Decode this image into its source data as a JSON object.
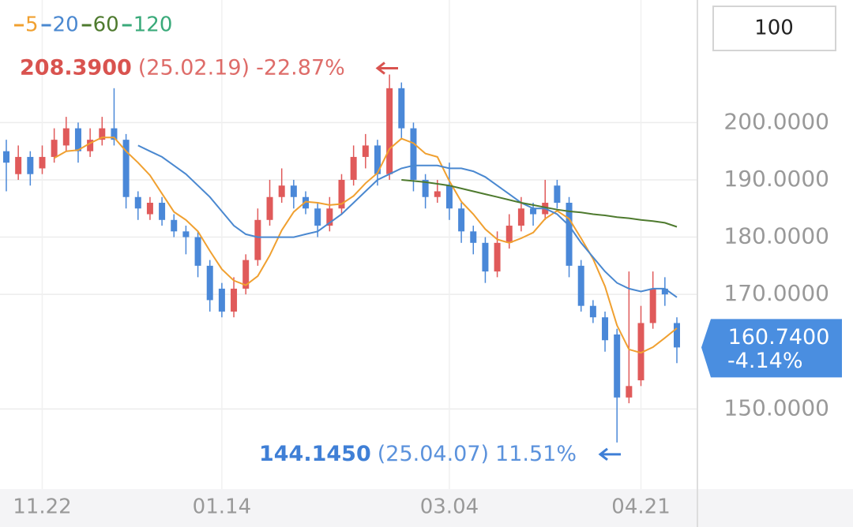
{
  "controls": {
    "count": "100"
  },
  "chart_data": {
    "type": "candlestick",
    "up_color": "#e05a5a",
    "down_color": "#4a88d8",
    "categories": [
      null,
      null,
      null,
      "11.22",
      null,
      null,
      null,
      null,
      null,
      null,
      null,
      null,
      null,
      null,
      null,
      null,
      null,
      null,
      "01.14",
      null,
      null,
      null,
      null,
      null,
      null,
      null,
      null,
      null,
      null,
      null,
      null,
      null,
      null,
      null,
      null,
      null,
      null,
      "03.04",
      null,
      null,
      null,
      null,
      null,
      null,
      null,
      null,
      null,
      null,
      null,
      null,
      null,
      null,
      null,
      "04.21",
      null,
      null,
      null
    ],
    "open": [
      195,
      191,
      194,
      192,
      194,
      196,
      199,
      195,
      197,
      199,
      197,
      187,
      184,
      186,
      183,
      181,
      180,
      175,
      171,
      167,
      171,
      176,
      183,
      187,
      189,
      187,
      185,
      182,
      185,
      190,
      194,
      196,
      191,
      206,
      199,
      190,
      187,
      189,
      185,
      181,
      179,
      174,
      179,
      182,
      185,
      184,
      189,
      186,
      175,
      168,
      166,
      163,
      152,
      155,
      165,
      171,
      165
    ],
    "high": [
      197,
      196,
      195,
      196,
      199,
      201,
      200,
      199,
      201,
      206,
      198,
      188,
      187,
      187,
      184,
      182,
      181,
      176,
      172,
      173,
      177,
      185,
      190,
      192,
      190,
      188,
      186,
      187,
      191,
      196,
      198,
      197,
      208.39,
      207,
      200,
      191,
      190,
      193,
      186,
      182,
      180,
      181,
      184,
      187,
      186,
      190,
      190,
      187,
      176,
      169,
      167,
      164,
      174,
      168,
      174,
      173,
      166
    ],
    "low": [
      188,
      190,
      189,
      191,
      193,
      195,
      193,
      194,
      196,
      196,
      185,
      183,
      183,
      182,
      180,
      177,
      173,
      167,
      166,
      166,
      170,
      175,
      182,
      186,
      185,
      184,
      180,
      181,
      184,
      189,
      192,
      189,
      190,
      197,
      188,
      185,
      186,
      183,
      179,
      177,
      172,
      173,
      178,
      181,
      182,
      183,
      185,
      173,
      167,
      165,
      160,
      144.145,
      151,
      154,
      164,
      168,
      158
    ],
    "close": [
      193,
      194,
      191,
      194,
      197,
      199,
      195,
      197,
      199,
      197,
      187,
      185,
      186,
      183,
      181,
      180,
      175,
      169,
      167,
      171,
      176,
      183,
      187,
      189,
      187,
      185,
      182,
      185,
      190,
      194,
      196,
      191,
      206,
      199,
      190,
      187,
      188,
      185,
      181,
      179,
      174,
      179,
      182,
      185,
      184,
      186,
      186,
      175,
      168,
      166,
      162,
      152,
      154,
      165,
      171,
      170,
      160.74
    ],
    "moving_averages": [
      {
        "name": "5",
        "color": "#f0a030",
        "values": [
          null,
          null,
          null,
          null,
          193.8,
          195,
          195.2,
          196.4,
          197.4,
          197.4,
          195,
          193,
          190.8,
          187.6,
          184.4,
          183,
          181,
          177.6,
          174.4,
          172.4,
          171.6,
          173.2,
          176.8,
          181.2,
          184.4,
          186.2,
          186,
          185.6,
          185.8,
          187.2,
          189.4,
          191.2,
          195.4,
          197.2,
          196.4,
          194.6,
          194,
          189.8,
          186.2,
          184,
          181.4,
          179.6,
          179,
          179.8,
          180.8,
          183.2,
          184.6,
          183.2,
          179.8,
          176.2,
          171.4,
          164.6,
          160.4,
          159.8,
          160.8,
          162.4,
          164.1
        ]
      },
      {
        "name": "20",
        "color": "#4a88d0",
        "values": [
          null,
          null,
          null,
          null,
          null,
          null,
          null,
          null,
          null,
          null,
          null,
          196,
          195,
          194,
          192.5,
          191,
          189,
          187,
          184.5,
          182,
          180.5,
          180,
          180,
          180,
          180,
          180.5,
          181,
          182.5,
          184,
          186,
          188,
          190,
          191,
          192,
          192.5,
          192.5,
          192.5,
          192,
          192,
          191.5,
          190.5,
          189,
          187.5,
          186,
          185,
          185,
          184,
          182,
          179,
          176.5,
          174,
          172,
          171,
          170.5,
          171,
          171,
          169.5
        ]
      },
      {
        "name": "60",
        "color": "#4e7a2e",
        "values": [
          null,
          null,
          null,
          null,
          null,
          null,
          null,
          null,
          null,
          null,
          null,
          null,
          null,
          null,
          null,
          null,
          null,
          null,
          null,
          null,
          null,
          null,
          null,
          null,
          null,
          null,
          null,
          null,
          null,
          null,
          null,
          null,
          null,
          190,
          189.8,
          189.6,
          189.3,
          189,
          188.5,
          188,
          187.5,
          187,
          186.5,
          186,
          185.6,
          185.2,
          184.8,
          184.5,
          184.3,
          184,
          183.8,
          183.5,
          183.3,
          183,
          182.8,
          182.5,
          181.8
        ]
      },
      {
        "name": "120",
        "color": "#3aaa7a",
        "values": [
          null,
          null,
          null,
          null,
          null,
          null,
          null,
          null,
          null,
          null,
          null,
          null,
          null,
          null,
          null,
          null,
          null,
          null,
          null,
          null,
          null,
          null,
          null,
          null,
          null,
          null,
          null,
          null,
          null,
          null,
          null,
          null,
          null,
          null,
          null,
          null,
          null,
          null,
          null,
          null,
          null,
          null,
          null,
          null,
          null,
          null,
          null,
          null,
          null,
          null,
          null,
          null,
          null,
          null,
          null,
          null,
          null
        ]
      }
    ],
    "ylim": [
      136,
      221.4
    ],
    "yticks": [
      {
        "value": 200,
        "label": "200.0000"
      },
      {
        "value": 190,
        "label": "190.0000"
      },
      {
        "value": 180,
        "label": "180.0000"
      },
      {
        "value": 170,
        "label": "170.0000"
      },
      {
        "value": 150,
        "label": "150.0000"
      }
    ],
    "grid": true,
    "annotations": {
      "high": {
        "value": 208.39,
        "label": "208.3900",
        "date": "(25.02.19)",
        "change": "-22.87%",
        "color": "#d9534f"
      },
      "low": {
        "value": 144.145,
        "label": "144.1450",
        "date": "(25.04.07)",
        "change": "11.51%",
        "color": "#3f7fd6"
      }
    },
    "current": {
      "value": 160.74,
      "label": "160.7400",
      "change": "-4.14%",
      "color": "#4a8ee0"
    }
  }
}
